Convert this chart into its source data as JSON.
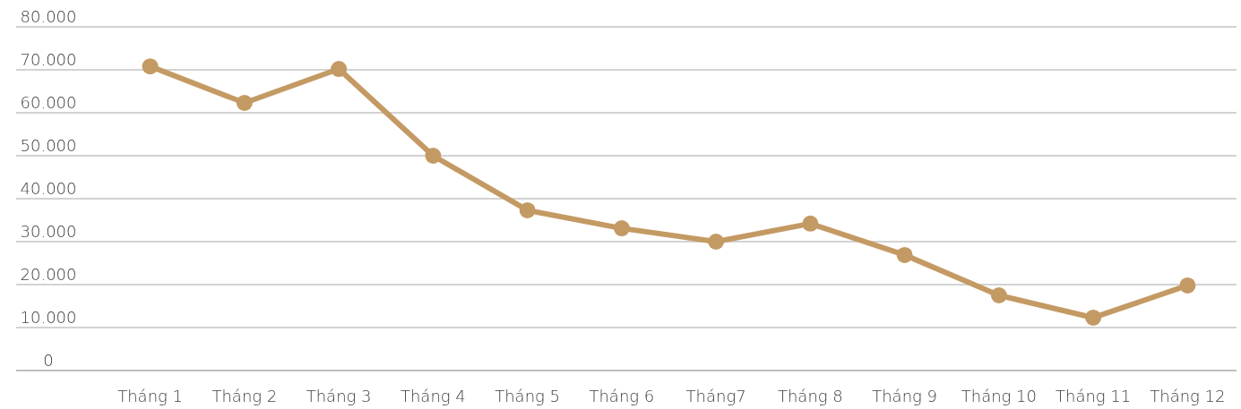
{
  "chart_data": {
    "type": "line",
    "categories": [
      "Tháng 1",
      "Tháng 2",
      "Tháng 3",
      "Tháng 4",
      "Tháng 5",
      "Tháng 6",
      "Tháng7",
      "Tháng 8",
      "Tháng 9",
      "Tháng 10",
      "Tháng 11",
      "Tháng 12"
    ],
    "series": [
      {
        "color": "#c49a64",
        "values": [
          70800,
          62300,
          70200,
          50000,
          37300,
          33100,
          30000,
          34200,
          26900,
          17500,
          12300,
          19800
        ]
      }
    ],
    "ylim": [
      0,
      80000
    ],
    "yticks": [
      {
        "value": 0,
        "label": "0"
      },
      {
        "value": 10000,
        "label": "10.000"
      },
      {
        "value": 20000,
        "label": "20.000"
      },
      {
        "value": 30000,
        "label": "30.000"
      },
      {
        "value": 40000,
        "label": "40.000"
      },
      {
        "value": 50000,
        "label": "50.000"
      },
      {
        "value": 60000,
        "label": "60.000"
      },
      {
        "value": 70000,
        "label": "70.000"
      },
      {
        "value": 80000,
        "label": "80.000"
      }
    ],
    "grid": "y",
    "marker": "circle",
    "line_style": "solid"
  }
}
